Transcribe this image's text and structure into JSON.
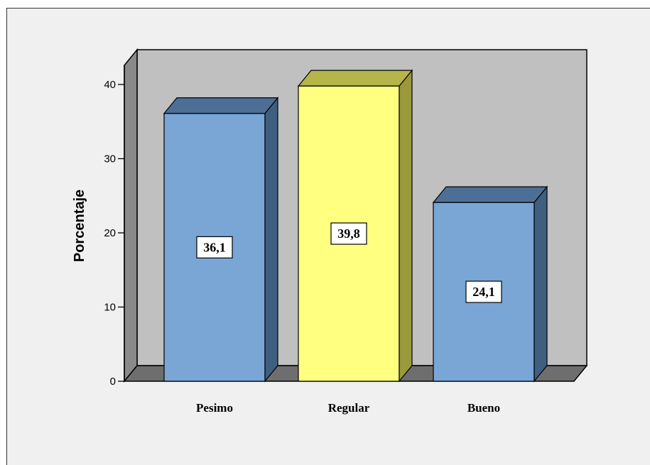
{
  "chart_data": {
    "type": "bar",
    "title": "",
    "xlabel": "",
    "ylabel": "Porcentaje",
    "categories": [
      "Pesimo",
      "Regular",
      "Bueno"
    ],
    "values": [
      36.1,
      39.8,
      24.1
    ],
    "value_labels": [
      "36,1",
      "39,8",
      "24,1"
    ],
    "ylim": [
      0,
      40
    ],
    "yticks": [
      0,
      10,
      20,
      30,
      40
    ],
    "bar_colors": [
      "#7aa6d6",
      "#ffff80",
      "#7aa6d6"
    ],
    "bar_side_colors": [
      "#3f5f80",
      "#9a9a3c",
      "#3f5f80"
    ],
    "bar_top_colors": [
      "#4d6f96",
      "#b5b54a",
      "#4d6f96"
    ],
    "background_color": "#c0c0c0",
    "grid": false,
    "style": "3d"
  }
}
